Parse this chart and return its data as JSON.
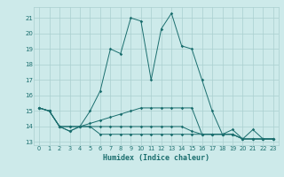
{
  "xlabel": "Humidex (Indice chaleur)",
  "background_color": "#cdeaea",
  "grid_color": "#aacfcf",
  "line_color": "#1a6e6e",
  "xlim": [
    -0.5,
    23.5
  ],
  "ylim": [
    12.8,
    21.7
  ],
  "yticks": [
    13,
    14,
    15,
    16,
    17,
    18,
    19,
    20,
    21
  ],
  "xticks": [
    0,
    1,
    2,
    3,
    4,
    5,
    6,
    7,
    8,
    9,
    10,
    11,
    12,
    13,
    14,
    15,
    16,
    17,
    18,
    19,
    20,
    21,
    22,
    23
  ],
  "series": [
    [
      15.2,
      15.0,
      14.0,
      14.0,
      14.0,
      15.0,
      16.3,
      19.0,
      18.7,
      21.0,
      20.8,
      17.0,
      20.3,
      21.3,
      19.2,
      19.0,
      17.0,
      15.0,
      13.5,
      13.8,
      13.2,
      13.8,
      13.2,
      13.2
    ],
    [
      15.2,
      15.0,
      14.0,
      14.0,
      14.0,
      14.2,
      14.4,
      14.6,
      14.8,
      15.0,
      15.2,
      15.2,
      15.2,
      15.2,
      15.2,
      15.2,
      13.5,
      13.5,
      13.5,
      13.5,
      13.2,
      13.2,
      13.2,
      13.2
    ],
    [
      15.2,
      15.0,
      14.0,
      13.7,
      14.0,
      14.0,
      14.0,
      14.0,
      14.0,
      14.0,
      14.0,
      14.0,
      14.0,
      14.0,
      14.0,
      13.7,
      13.5,
      13.5,
      13.5,
      13.5,
      13.2,
      13.2,
      13.2,
      13.2
    ],
    [
      15.2,
      15.0,
      14.0,
      13.7,
      14.0,
      14.0,
      13.5,
      13.5,
      13.5,
      13.5,
      13.5,
      13.5,
      13.5,
      13.5,
      13.5,
      13.5,
      13.5,
      13.5,
      13.5,
      13.5,
      13.2,
      13.2,
      13.2,
      13.2
    ]
  ]
}
